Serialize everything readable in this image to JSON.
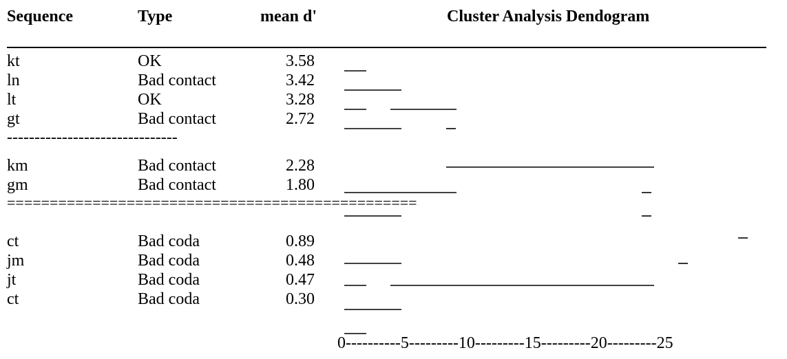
{
  "headers": {
    "sequence": "Sequence",
    "type": "Type",
    "mean_d": "mean d'",
    "dendrogram": "Cluster Analysis Dendogram"
  },
  "group_separator_dashes": "-------------------------------",
  "group_separator_equals": "================================================",
  "rows": [
    {
      "sequence": "kt",
      "type": "OK",
      "mean_d": "3.58"
    },
    {
      "sequence": "ln",
      "type": "Bad contact",
      "mean_d": "3.42"
    },
    {
      "sequence": "lt",
      "type": "OK",
      "mean_d": "3.28"
    },
    {
      "sequence": "gt",
      "type": "Bad contact",
      "mean_d": "2.72"
    },
    {
      "sequence": "km",
      "type": "Bad contact",
      "mean_d": "2.28"
    },
    {
      "sequence": "gm",
      "type": "Bad contact",
      "mean_d": "1.80"
    },
    {
      "sequence": "ct",
      "type": "Bad coda",
      "mean_d": "0.89"
    },
    {
      "sequence": "jm",
      "type": "Bad coda",
      "mean_d": "0.48"
    },
    {
      "sequence": "jt",
      "type": "Bad coda",
      "mean_d": "0.47"
    },
    {
      "sequence": "ct",
      "type": "Bad coda",
      "mean_d": "0.30"
    }
  ],
  "scale_axis": "0----------5---------10---------15---------20---------25"
}
